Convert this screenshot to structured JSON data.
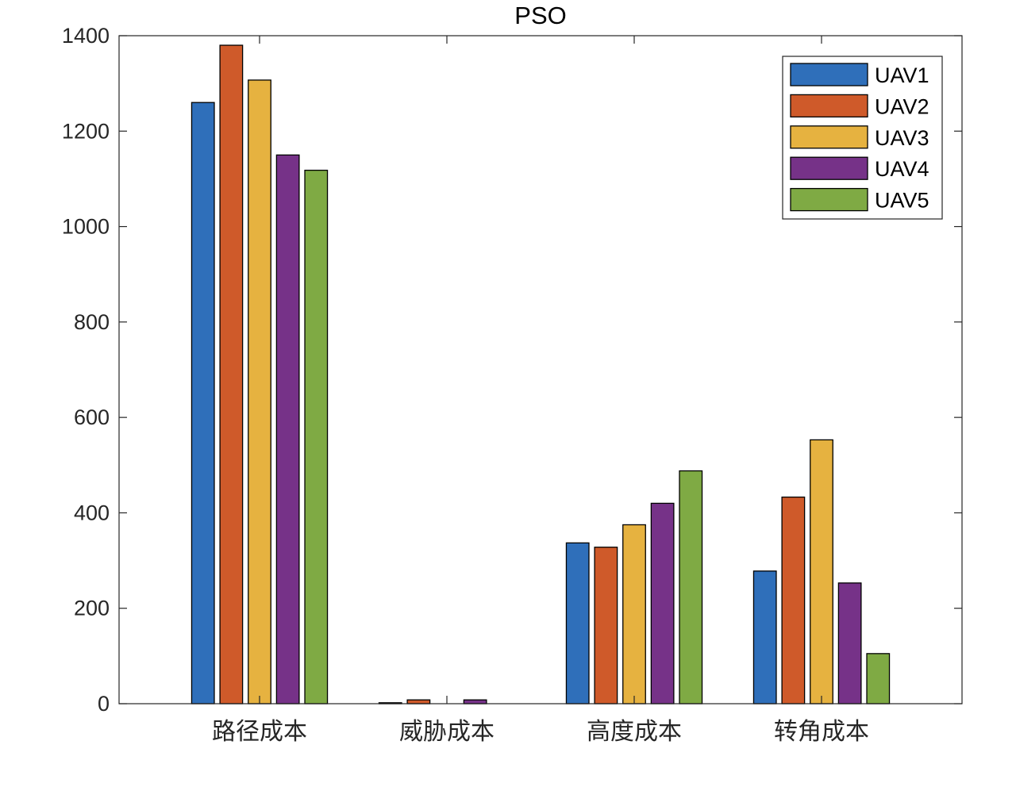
{
  "chart_data": {
    "type": "bar",
    "title": "PSO",
    "categories": [
      "路径成本",
      "威胁成本",
      "高度成本",
      "转角成本"
    ],
    "series": [
      {
        "name": "UAV1",
        "color": "#2f6fba",
        "values": [
          1260,
          2,
          337,
          278
        ]
      },
      {
        "name": "UAV2",
        "color": "#cf5a2a",
        "values": [
          1380,
          8,
          328,
          433
        ]
      },
      {
        "name": "UAV3",
        "color": "#e6b240",
        "values": [
          1307,
          0,
          375,
          553
        ]
      },
      {
        "name": "UAV4",
        "color": "#763288",
        "values": [
          1150,
          8,
          420,
          253
        ]
      },
      {
        "name": "UAV5",
        "color": "#7faa44",
        "values": [
          1118,
          0,
          488,
          105
        ]
      }
    ],
    "ylim": [
      0,
      1400
    ],
    "yticks": [
      0,
      200,
      400,
      600,
      800,
      1000,
      1200,
      1400
    ],
    "legend_position": "top-right",
    "grid": false
  }
}
